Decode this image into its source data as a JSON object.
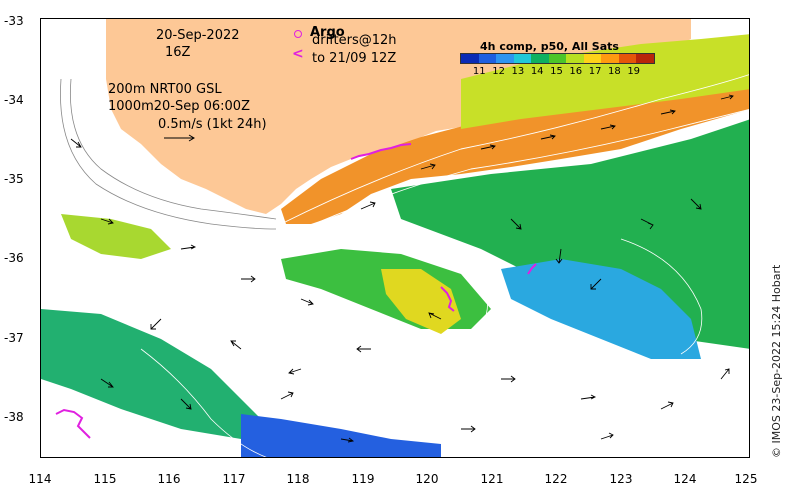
{
  "date": {
    "line1": "20-Sep-2022",
    "line2": "16Z"
  },
  "contours": {
    "line1": "200m  NRT00 GSL",
    "line2": "1000m20-Sep 06:00Z"
  },
  "scale": {
    "label": "0.5m/s (1kt 24h)"
  },
  "argo": {
    "title": "Argo",
    "line1": "drifters@12h",
    "line2": "to 21/09 12Z"
  },
  "colorbar": {
    "title": "4h comp, p50, All Sats",
    "ticks": [
      "11",
      "12",
      "13",
      "14",
      "15",
      "16",
      "17",
      "18",
      "19"
    ],
    "colors": [
      "#0b2bb5",
      "#1f5fe0",
      "#2f95f0",
      "#22c8d8",
      "#10b060",
      "#4cc52a",
      "#b8e020",
      "#ffd21a",
      "#ff9a10",
      "#e5560a",
      "#b8260a"
    ]
  },
  "axes": {
    "x_ticks": [
      "114",
      "115",
      "116",
      "117",
      "118",
      "119",
      "120",
      "121",
      "122",
      "123",
      "124",
      "125"
    ],
    "y_ticks": [
      "-33",
      "-34",
      "-35",
      "-36",
      "-37",
      "-38"
    ],
    "lon_range": [
      114,
      125
    ],
    "lat_range": [
      -38.5,
      -33
    ]
  },
  "credit": "© IMOS 23-Sep-2022 15:24 Hobart",
  "colors": {
    "land": "#fdc896",
    "argo": "#e020e0"
  }
}
